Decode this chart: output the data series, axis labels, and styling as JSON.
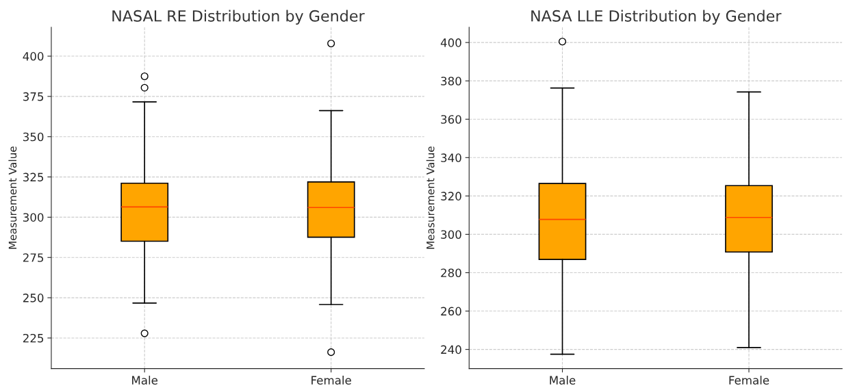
{
  "chart_data": [
    {
      "type": "box",
      "title": "NASAL RE Distribution by Gender",
      "ylabel": "Measurement Value",
      "categories": [
        "Male",
        "Female"
      ],
      "color": "#ffa500",
      "grid": true,
      "ylim": [
        206,
        418
      ],
      "yticks": [
        225,
        250,
        275,
        300,
        325,
        350,
        375,
        400
      ],
      "boxes": [
        {
          "low": 246.7,
          "q1": 285.1,
          "median": 306.4,
          "q3": 321.1,
          "high": 371.6,
          "outliers": [
            387.5,
            380.4,
            227.9
          ]
        },
        {
          "low": 245.8,
          "q1": 287.6,
          "median": 306.0,
          "q3": 321.9,
          "high": 366.2,
          "outliers": [
            407.9,
            216.2
          ]
        }
      ]
    },
    {
      "type": "box",
      "title": "NASA LLE Distribution by Gender",
      "ylabel": "Measurement Value",
      "categories": [
        "Male",
        "Female"
      ],
      "color": "#ffa500",
      "grid": true,
      "ylim": [
        230,
        408
      ],
      "yticks": [
        240,
        260,
        280,
        300,
        320,
        340,
        360,
        380,
        400
      ],
      "boxes": [
        {
          "low": 237.5,
          "q1": 286.9,
          "median": 307.8,
          "q3": 326.5,
          "high": 376.3,
          "outliers": [
            400.5
          ]
        },
        {
          "low": 241.0,
          "q1": 290.8,
          "median": 308.8,
          "q3": 325.4,
          "high": 374.2
        }
      ]
    }
  ]
}
